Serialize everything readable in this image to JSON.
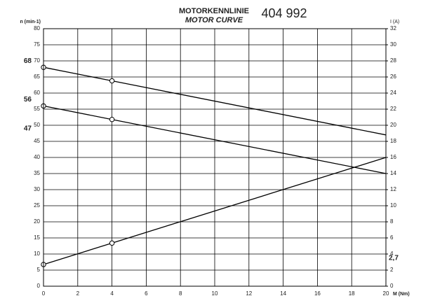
{
  "chart_data": {
    "type": "line",
    "title": "MOTORKENNLINIE",
    "subtitle": "MOTOR CURVE",
    "model": "404 992",
    "ylabel": "n (min-1)",
    "y2label": "I (A)",
    "xlabel": "M (Nm)",
    "x": [
      0,
      4,
      20
    ],
    "markers": [
      true,
      true,
      false
    ],
    "series": [
      {
        "color": "#000000",
        "values": [
          68,
          63.8,
          47
        ]
      },
      {
        "color": "#000000",
        "values": [
          56,
          51.8,
          35
        ]
      },
      {
        "color": "#000000",
        "values": [
          2.7,
          5.36,
          16
        ],
        "axis": "y2"
      }
    ],
    "xlim": [
      0,
      20
    ],
    "xticks": [
      0,
      2,
      4,
      6,
      8,
      10,
      12,
      14,
      16,
      18,
      20
    ],
    "ylim": [
      0,
      80
    ],
    "yticks": [
      0,
      5,
      10,
      15,
      20,
      25,
      30,
      35,
      40,
      45,
      50,
      55,
      60,
      65,
      70,
      75,
      80
    ],
    "y2lim": [
      0,
      32
    ],
    "y2ticks": [
      0,
      2,
      4,
      6,
      8,
      10,
      12,
      14,
      16,
      18,
      20,
      22,
      24,
      26,
      28,
      30,
      32
    ],
    "grid": true,
    "annotations": [
      {
        "text": "68",
        "value": 68,
        "axis": "y"
      },
      {
        "text": "56",
        "value": 56,
        "axis": "y"
      },
      {
        "text": "47",
        "value": 47,
        "axis": "y"
      },
      {
        "text": "2,7",
        "value": 2.7,
        "axis": "y2"
      }
    ]
  }
}
